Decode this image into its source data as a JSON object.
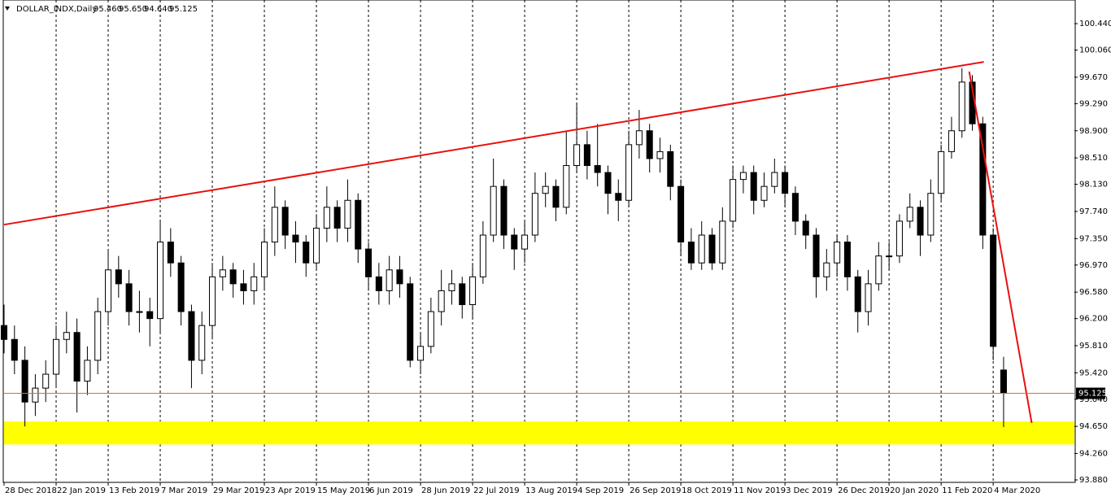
{
  "chart_data": {
    "type": "candlestick",
    "title": "DOLLAR_INDX,Daily",
    "header_prices": [
      "95.460",
      "95.650",
      "94.640",
      "95.125"
    ],
    "open": [
      96.1,
      95.9,
      95.6,
      95.0,
      95.2,
      95.4,
      95.9,
      96.0,
      95.3,
      95.6,
      96.3,
      96.9,
      96.7,
      96.3,
      96.3,
      96.2,
      97.3,
      97.0,
      96.3,
      95.6,
      96.1,
      96.8,
      96.9,
      96.7,
      96.6,
      96.8,
      97.3,
      97.8,
      97.4,
      97.3,
      97.0,
      97.5,
      97.8,
      97.5,
      97.9,
      97.2,
      96.8,
      96.6,
      96.9,
      96.7,
      95.6,
      95.8,
      96.3,
      96.6,
      96.7,
      96.4,
      96.8,
      97.4,
      98.1,
      97.4,
      97.2,
      97.4,
      98.0,
      98.1,
      97.8,
      98.4,
      98.7,
      98.4,
      98.3,
      98.0,
      97.9,
      98.7,
      98.9,
      98.5,
      98.6,
      98.1,
      97.3,
      97.0,
      97.4,
      97.0,
      97.6,
      98.2,
      98.3,
      97.9,
      98.1,
      98.3,
      98.0,
      97.6,
      97.4,
      96.8,
      97.0,
      97.3,
      96.8,
      96.3,
      96.7,
      97.1,
      97.1,
      97.6,
      97.8,
      97.4,
      98.0,
      98.6,
      98.9,
      99.6,
      99.0,
      97.4,
      95.46
    ],
    "high": [
      96.4,
      96.1,
      95.8,
      95.4,
      95.6,
      96.1,
      96.3,
      96.2,
      95.8,
      96.5,
      97.2,
      97.1,
      96.9,
      96.6,
      96.5,
      97.6,
      97.5,
      97.1,
      96.4,
      96.3,
      97.0,
      97.1,
      97.0,
      96.9,
      97.0,
      97.5,
      98.1,
      97.9,
      97.6,
      97.4,
      97.7,
      98.1,
      97.9,
      98.2,
      98.0,
      97.3,
      97.0,
      97.1,
      97.1,
      96.8,
      96.0,
      96.5,
      96.9,
      96.9,
      96.8,
      97.0,
      97.6,
      98.5,
      98.2,
      97.5,
      97.6,
      98.3,
      98.3,
      98.2,
      98.9,
      99.3,
      98.9,
      99.0,
      98.4,
      98.2,
      98.9,
      99.2,
      99.0,
      98.8,
      98.7,
      98.2,
      97.5,
      97.6,
      97.5,
      97.8,
      98.4,
      98.4,
      98.4,
      98.3,
      98.5,
      98.4,
      98.1,
      97.7,
      97.5,
      97.2,
      97.4,
      97.4,
      96.9,
      96.9,
      97.3,
      97.3,
      97.7,
      98.0,
      97.9,
      98.2,
      98.7,
      99.1,
      99.8,
      99.7,
      99.1,
      97.5,
      95.65
    ],
    "low": [
      95.7,
      95.4,
      94.65,
      94.8,
      95.0,
      95.2,
      95.7,
      94.85,
      95.1,
      95.4,
      96.1,
      96.5,
      96.1,
      96.0,
      95.8,
      96.0,
      96.8,
      96.1,
      95.2,
      95.4,
      95.9,
      96.6,
      96.5,
      96.4,
      96.4,
      96.6,
      97.1,
      97.2,
      97.0,
      96.8,
      96.9,
      97.3,
      97.3,
      97.3,
      97.0,
      96.6,
      96.4,
      96.4,
      96.5,
      95.5,
      95.4,
      95.7,
      96.1,
      96.4,
      96.2,
      96.2,
      96.7,
      97.3,
      97.2,
      96.9,
      97.0,
      97.3,
      97.8,
      97.6,
      97.7,
      98.3,
      98.2,
      98.1,
      97.7,
      97.6,
      97.8,
      98.5,
      98.3,
      98.3,
      97.9,
      97.1,
      96.9,
      96.9,
      96.9,
      96.9,
      97.5,
      98.0,
      97.7,
      97.8,
      98.0,
      97.8,
      97.4,
      97.2,
      96.5,
      96.6,
      96.8,
      96.6,
      96.0,
      96.1,
      96.6,
      96.9,
      97.0,
      97.5,
      97.1,
      97.3,
      97.9,
      98.5,
      98.8,
      98.9,
      97.2,
      95.6,
      94.64
    ],
    "close": [
      95.9,
      95.6,
      95.0,
      95.2,
      95.4,
      95.9,
      96.0,
      95.3,
      95.6,
      96.3,
      96.9,
      96.7,
      96.3,
      96.3,
      96.2,
      97.3,
      97.0,
      96.3,
      95.6,
      96.1,
      96.8,
      96.9,
      96.7,
      96.6,
      96.8,
      97.3,
      97.8,
      97.4,
      97.3,
      97.0,
      97.5,
      97.8,
      97.5,
      97.9,
      97.2,
      96.8,
      96.6,
      96.9,
      96.7,
      95.6,
      95.8,
      96.3,
      96.6,
      96.7,
      96.4,
      96.8,
      97.4,
      98.1,
      97.4,
      97.2,
      97.4,
      98.0,
      98.1,
      97.8,
      98.4,
      98.7,
      98.4,
      98.3,
      98.0,
      97.9,
      98.7,
      98.9,
      98.5,
      98.6,
      98.1,
      97.3,
      97.0,
      97.4,
      97.0,
      97.6,
      98.2,
      98.3,
      97.9,
      98.1,
      98.3,
      98.0,
      97.6,
      97.4,
      96.8,
      97.0,
      97.3,
      96.8,
      96.3,
      96.7,
      97.1,
      97.1,
      97.6,
      97.8,
      97.4,
      98.0,
      98.6,
      98.9,
      99.6,
      99.0,
      97.4,
      95.8,
      95.125
    ],
    "xlim": [
      0,
      102.8
    ],
    "xticks": [
      {
        "value": 0,
        "label": "28 Dec 2018"
      },
      {
        "value": 5,
        "label": "22 Jan 2019"
      },
      {
        "value": 10,
        "label": "13 Feb 2019"
      },
      {
        "value": 15,
        "label": "7 Mar 2019"
      },
      {
        "value": 20,
        "label": "29 Mar 2019"
      },
      {
        "value": 25,
        "label": "23 Apr 2019"
      },
      {
        "value": 30,
        "label": "15 May 2019"
      },
      {
        "value": 35,
        "label": "6 Jun 2019"
      },
      {
        "value": 40,
        "label": "28 Jun 2019"
      },
      {
        "value": 45,
        "label": "22 Jul 2019"
      },
      {
        "value": 50,
        "label": "13 Aug 2019"
      },
      {
        "value": 55,
        "label": "4 Sep 2019"
      },
      {
        "value": 60,
        "label": "26 Sep 2019"
      },
      {
        "value": 65,
        "label": "18 Oct 2019"
      },
      {
        "value": 70,
        "label": "11 Nov 2019"
      },
      {
        "value": 75,
        "label": "3 Dec 2019"
      },
      {
        "value": 80,
        "label": "26 Dec 2019"
      },
      {
        "value": 85,
        "label": "20 Jan 2020"
      },
      {
        "value": 90,
        "label": "11 Feb 2020"
      },
      {
        "value": 95,
        "label": "4 Mar 2020"
      }
    ],
    "ylim": [
      93.845,
      100.78
    ],
    "yticks": [
      {
        "value": 100.44,
        "label": "100.440"
      },
      {
        "value": 100.06,
        "label": "100.060"
      },
      {
        "value": 99.67,
        "label": "99.670"
      },
      {
        "value": 99.29,
        "label": "99.290"
      },
      {
        "value": 98.9,
        "label": "98.900"
      },
      {
        "value": 98.51,
        "label": "98.510"
      },
      {
        "value": 98.13,
        "label": "98.130"
      },
      {
        "value": 97.74,
        "label": "97.740"
      },
      {
        "value": 97.35,
        "label": "97.350"
      },
      {
        "value": 96.97,
        "label": "96.970"
      },
      {
        "value": 96.58,
        "label": "96.580"
      },
      {
        "value": 96.2,
        "label": "96.200"
      },
      {
        "value": 95.81,
        "label": "95.810"
      },
      {
        "value": 95.42,
        "label": "95.420"
      },
      {
        "value": 95.04,
        "label": "95.040"
      },
      {
        "value": 94.65,
        "label": "94.650"
      },
      {
        "value": 94.26,
        "label": "94.260"
      },
      {
        "value": 93.88,
        "label": "93.880"
      }
    ],
    "current_price": {
      "value": 95.125,
      "label": "95.125"
    },
    "trendlines": [
      {
        "x": [
          0,
          94.1
        ],
        "y": [
          97.55,
          99.89
        ],
        "color": "#e81010"
      },
      {
        "x": [
          92.7,
          98.7
        ],
        "y": [
          99.75,
          94.7
        ],
        "color": "#e81010"
      }
    ],
    "zone": {
      "ylim": [
        94.39,
        94.72
      ],
      "color": "#ffff00"
    },
    "grid": true
  }
}
